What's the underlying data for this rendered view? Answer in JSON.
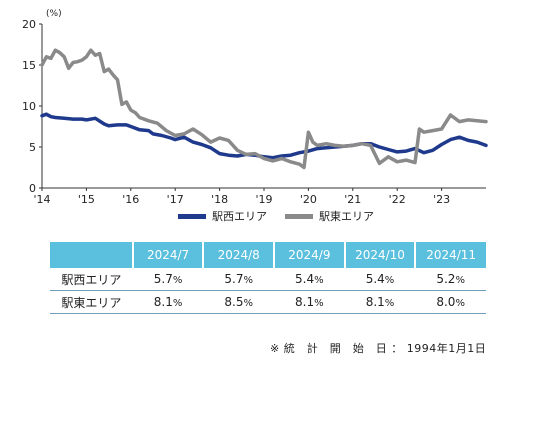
{
  "chart_data": {
    "type": "line",
    "unit_label": "(%)",
    "ylim": [
      0,
      20
    ],
    "yticks": [
      0,
      5,
      10,
      15,
      20
    ],
    "xlim": [
      2014.0,
      2024.0
    ],
    "xtick_labels": [
      "'14",
      "'15",
      "'16",
      "'17",
      "'18",
      "'19",
      "'20",
      "'21",
      "'22",
      "'23"
    ],
    "grid": false,
    "legend_position": "bottom",
    "series": [
      {
        "name": "駅西エリア",
        "color": "#1f3a8c",
        "x": [
          2014.0,
          2014.1,
          2014.2,
          2014.3,
          2014.5,
          2014.7,
          2014.9,
          2015.0,
          2015.2,
          2015.4,
          2015.5,
          2015.7,
          2015.9,
          2016.0,
          2016.2,
          2016.4,
          2016.5,
          2016.7,
          2016.9,
          2017.0,
          2017.2,
          2017.4,
          2017.6,
          2017.8,
          2018.0,
          2018.2,
          2018.4,
          2018.6,
          2018.8,
          2019.0,
          2019.2,
          2019.4,
          2019.6,
          2019.8,
          2020.0,
          2020.2,
          2020.4,
          2020.6,
          2020.8,
          2021.0,
          2021.2,
          2021.4,
          2021.6,
          2021.8,
          2022.0,
          2022.2,
          2022.4,
          2022.6,
          2022.8,
          2023.0,
          2023.2,
          2023.4,
          2023.6,
          2023.8,
          2024.0
        ],
        "values": [
          8.8,
          9.0,
          8.7,
          8.6,
          8.5,
          8.4,
          8.4,
          8.3,
          8.5,
          7.8,
          7.6,
          7.7,
          7.7,
          7.5,
          7.1,
          7.0,
          6.6,
          6.4,
          6.1,
          5.9,
          6.2,
          5.6,
          5.3,
          4.9,
          4.2,
          4.0,
          3.9,
          4.1,
          4.0,
          3.8,
          3.7,
          3.9,
          4.0,
          4.3,
          4.5,
          4.8,
          4.9,
          5.0,
          5.1,
          5.2,
          5.4,
          5.4,
          5.0,
          4.7,
          4.4,
          4.5,
          4.8,
          4.3,
          4.6,
          5.3,
          5.9,
          6.2,
          5.8,
          5.6,
          5.2
        ]
      },
      {
        "name": "駅東エリア",
        "color": "#8a8a8a",
        "x": [
          2014.0,
          2014.1,
          2014.2,
          2014.3,
          2014.4,
          2014.5,
          2014.6,
          2014.7,
          2014.8,
          2014.9,
          2015.0,
          2015.1,
          2015.2,
          2015.3,
          2015.4,
          2015.5,
          2015.6,
          2015.7,
          2015.8,
          2015.9,
          2016.0,
          2016.1,
          2016.2,
          2016.4,
          2016.6,
          2016.8,
          2017.0,
          2017.2,
          2017.4,
          2017.6,
          2017.8,
          2018.0,
          2018.2,
          2018.4,
          2018.6,
          2018.8,
          2019.0,
          2019.2,
          2019.4,
          2019.6,
          2019.8,
          2019.9,
          2020.0,
          2020.1,
          2020.2,
          2020.4,
          2020.6,
          2020.8,
          2021.0,
          2021.2,
          2021.4,
          2021.6,
          2021.8,
          2022.0,
          2022.2,
          2022.4,
          2022.5,
          2022.6,
          2022.8,
          2023.0,
          2023.2,
          2023.4,
          2023.6,
          2023.8,
          2024.0
        ],
        "values": [
          15.0,
          16.0,
          15.8,
          16.8,
          16.5,
          16.0,
          14.6,
          15.3,
          15.4,
          15.6,
          16.0,
          16.8,
          16.2,
          16.4,
          14.2,
          14.5,
          13.8,
          13.2,
          10.2,
          10.5,
          9.5,
          9.2,
          8.6,
          8.2,
          7.9,
          7.0,
          6.4,
          6.6,
          7.2,
          6.5,
          5.6,
          6.1,
          5.8,
          4.6,
          4.1,
          4.2,
          3.6,
          3.3,
          3.6,
          3.2,
          2.9,
          2.5,
          6.8,
          5.6,
          5.2,
          5.4,
          5.2,
          5.1,
          5.2,
          5.4,
          5.2,
          3.0,
          3.8,
          3.2,
          3.4,
          3.1,
          7.2,
          6.8,
          7.0,
          7.2,
          8.9,
          8.1,
          8.3,
          8.2,
          8.1
        ]
      }
    ]
  },
  "table": {
    "headers": [
      "2024/7",
      "2024/8",
      "2024/9",
      "2024/10",
      "2024/11"
    ],
    "rows": [
      {
        "label": "駅西エリア",
        "values": [
          "5.7",
          "5.7",
          "5.4",
          "5.4",
          "5.2"
        ]
      },
      {
        "label": "駅東エリア",
        "values": [
          "8.1",
          "8.5",
          "8.1",
          "8.1",
          "8.0"
        ]
      }
    ],
    "unit": "%"
  },
  "footnote": "※ 統　計　開　始　日 ： 1994年1月1日"
}
